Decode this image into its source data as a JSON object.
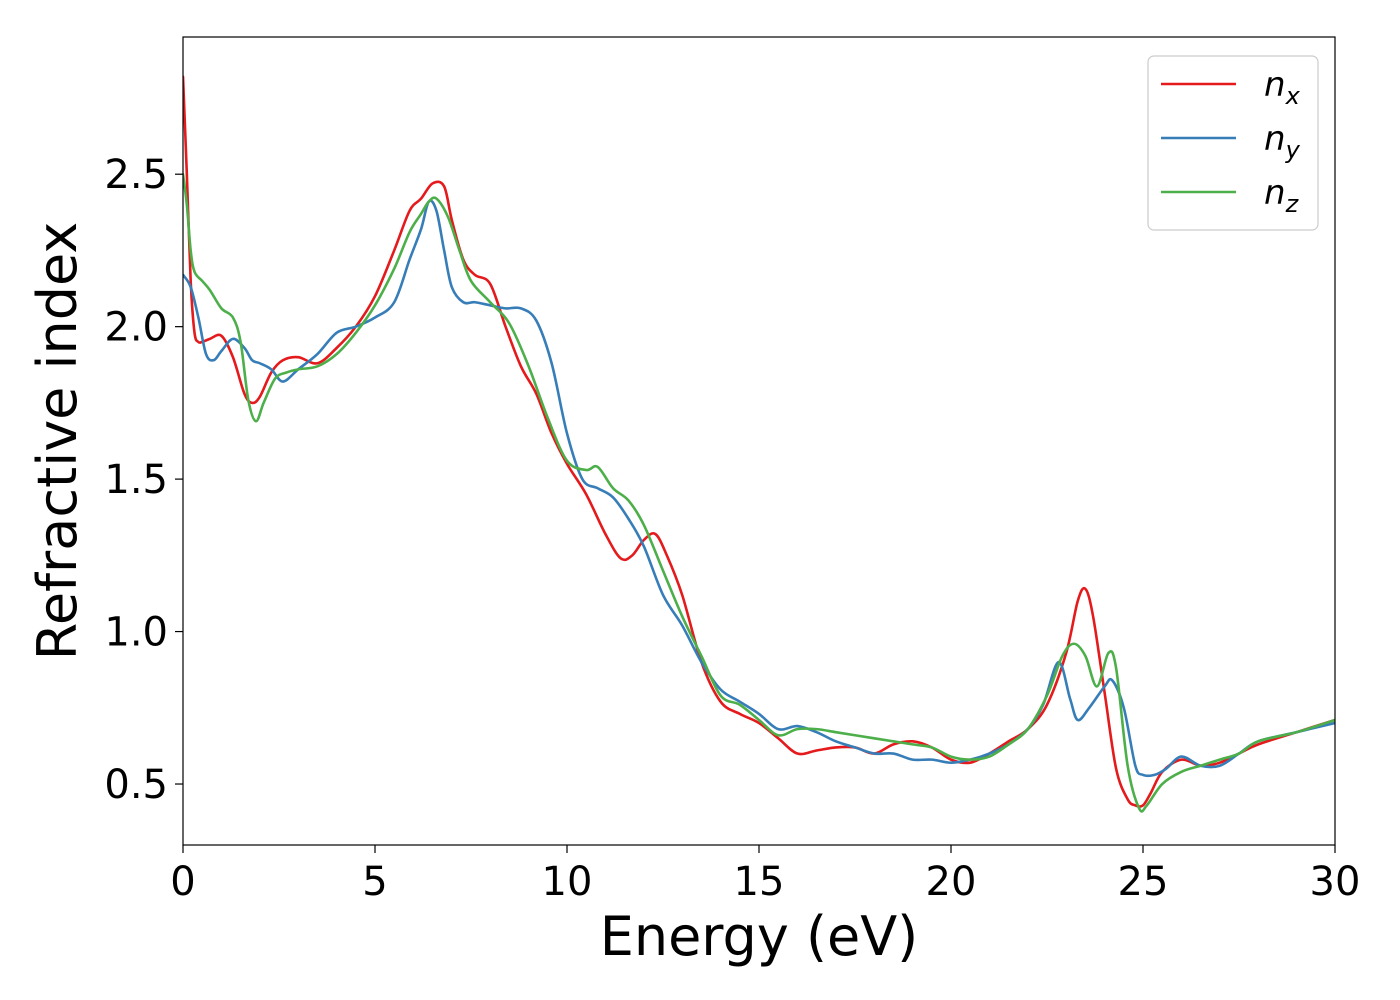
{
  "chart_data": {
    "type": "line",
    "title": "",
    "xlabel": "Energy (eV)",
    "ylabel": "Refractive index",
    "xlim": [
      0,
      30
    ],
    "ylim": [
      0.3,
      2.95
    ],
    "xticks": [
      0,
      5,
      10,
      15,
      20,
      25,
      30
    ],
    "xtick_labels": [
      "0",
      "5",
      "10",
      "15",
      "20",
      "25",
      "30"
    ],
    "yticks": [
      0.5,
      1.0,
      1.5,
      2.0,
      2.5
    ],
    "ytick_labels": [
      "0.5",
      "1.0",
      "1.5",
      "2.0",
      "2.5"
    ],
    "grid": false,
    "legend_position": "top-right",
    "series": [
      {
        "name": "n_x",
        "label_main": "n",
        "label_sub": "x",
        "color": "#e41a1c",
        "x": [
          0,
          0.1,
          0.2,
          0.3,
          0.4,
          0.5,
          0.7,
          1.0,
          1.3,
          1.6,
          1.8,
          2.0,
          2.3,
          2.6,
          3.0,
          3.5,
          4.0,
          4.5,
          5.0,
          5.5,
          5.9,
          6.2,
          6.5,
          6.8,
          7.0,
          7.3,
          7.6,
          8.0,
          8.4,
          8.8,
          9.2,
          9.6,
          10.0,
          10.5,
          11.0,
          11.4,
          11.7,
          12.0,
          12.3,
          12.6,
          13.0,
          13.5,
          14.0,
          14.5,
          15.0,
          15.5,
          16.0,
          16.5,
          17.0,
          17.5,
          18.0,
          18.5,
          19.0,
          19.5,
          20.0,
          20.5,
          21.0,
          21.5,
          22.0,
          22.5,
          23.0,
          23.3,
          23.5,
          23.7,
          24.0,
          24.3,
          24.6,
          24.8,
          25.0,
          25.2,
          25.5,
          26.0,
          26.5,
          27.0,
          27.5,
          28.0,
          29.0,
          30.0
        ],
        "y": [
          2.82,
          2.5,
          2.15,
          1.98,
          1.95,
          1.95,
          1.96,
          1.97,
          1.9,
          1.78,
          1.75,
          1.77,
          1.85,
          1.89,
          1.9,
          1.88,
          1.93,
          2.0,
          2.1,
          2.25,
          2.38,
          2.42,
          2.47,
          2.46,
          2.35,
          2.22,
          2.17,
          2.14,
          2.0,
          1.87,
          1.78,
          1.65,
          1.55,
          1.45,
          1.32,
          1.24,
          1.25,
          1.3,
          1.32,
          1.25,
          1.12,
          0.9,
          0.77,
          0.73,
          0.7,
          0.65,
          0.6,
          0.61,
          0.62,
          0.62,
          0.6,
          0.63,
          0.64,
          0.62,
          0.58,
          0.57,
          0.6,
          0.64,
          0.68,
          0.76,
          0.93,
          1.1,
          1.14,
          1.05,
          0.8,
          0.55,
          0.45,
          0.43,
          0.43,
          0.47,
          0.54,
          0.58,
          0.56,
          0.57,
          0.6,
          0.63,
          0.67,
          0.71
        ]
      },
      {
        "name": "n_y",
        "label_main": "n",
        "label_sub": "y",
        "color": "#377eb8",
        "x": [
          0,
          0.2,
          0.4,
          0.6,
          0.8,
          1.0,
          1.3,
          1.6,
          1.8,
          2.0,
          2.3,
          2.6,
          3.0,
          3.5,
          4.0,
          4.5,
          5.0,
          5.5,
          5.9,
          6.2,
          6.4,
          6.6,
          6.8,
          7.0,
          7.3,
          7.6,
          8.0,
          8.4,
          8.8,
          9.2,
          9.6,
          10.0,
          10.4,
          10.8,
          11.2,
          11.6,
          12.0,
          12.5,
          13.0,
          13.5,
          14.0,
          14.5,
          15.0,
          15.5,
          16.0,
          16.5,
          17.0,
          17.5,
          18.0,
          18.5,
          19.0,
          19.5,
          20.0,
          20.5,
          21.0,
          21.5,
          22.0,
          22.4,
          22.8,
          23.1,
          23.3,
          23.6,
          24.0,
          24.2,
          24.5,
          24.8,
          25.0,
          25.3,
          25.6,
          26.0,
          26.5,
          27.0,
          27.5,
          28.0,
          29.0,
          30.0
        ],
        "y": [
          2.17,
          2.13,
          2.03,
          1.91,
          1.89,
          1.92,
          1.96,
          1.93,
          1.89,
          1.88,
          1.86,
          1.82,
          1.86,
          1.91,
          1.98,
          2.0,
          2.03,
          2.08,
          2.22,
          2.32,
          2.41,
          2.38,
          2.25,
          2.13,
          2.08,
          2.08,
          2.07,
          2.06,
          2.06,
          2.02,
          1.88,
          1.65,
          1.5,
          1.47,
          1.44,
          1.37,
          1.28,
          1.12,
          1.02,
          0.9,
          0.81,
          0.77,
          0.73,
          0.68,
          0.69,
          0.67,
          0.64,
          0.62,
          0.6,
          0.6,
          0.58,
          0.58,
          0.57,
          0.58,
          0.6,
          0.63,
          0.68,
          0.76,
          0.9,
          0.78,
          0.71,
          0.75,
          0.82,
          0.84,
          0.75,
          0.56,
          0.53,
          0.53,
          0.55,
          0.59,
          0.56,
          0.56,
          0.6,
          0.64,
          0.67,
          0.7
        ]
      },
      {
        "name": "n_z",
        "label_main": "n",
        "label_sub": "z",
        "color": "#4daf4a",
        "x": [
          0,
          0.1,
          0.2,
          0.3,
          0.5,
          0.7,
          1.0,
          1.3,
          1.5,
          1.7,
          1.9,
          2.1,
          2.4,
          2.7,
          3.0,
          3.5,
          4.0,
          4.5,
          5.0,
          5.5,
          5.9,
          6.2,
          6.4,
          6.6,
          6.9,
          7.2,
          7.5,
          8.0,
          8.5,
          9.0,
          9.5,
          10.0,
          10.5,
          10.8,
          11.2,
          11.6,
          12.0,
          12.5,
          13.0,
          13.5,
          14.0,
          14.5,
          15.0,
          15.5,
          16.0,
          16.5,
          17.0,
          17.5,
          18.0,
          18.5,
          19.0,
          19.5,
          20.0,
          20.5,
          21.0,
          21.5,
          22.0,
          22.5,
          22.9,
          23.2,
          23.5,
          23.8,
          24.1,
          24.3,
          24.6,
          24.9,
          25.1,
          25.5,
          26.0,
          26.5,
          27.0,
          27.5,
          28.0,
          29.0,
          30.0
        ],
        "y": [
          2.5,
          2.4,
          2.25,
          2.18,
          2.15,
          2.12,
          2.06,
          2.03,
          1.95,
          1.76,
          1.69,
          1.75,
          1.83,
          1.85,
          1.86,
          1.87,
          1.91,
          1.98,
          2.07,
          2.19,
          2.31,
          2.37,
          2.41,
          2.42,
          2.36,
          2.25,
          2.15,
          2.08,
          2.01,
          1.87,
          1.7,
          1.56,
          1.53,
          1.54,
          1.47,
          1.43,
          1.35,
          1.2,
          1.05,
          0.92,
          0.79,
          0.76,
          0.71,
          0.66,
          0.68,
          0.68,
          0.67,
          0.66,
          0.65,
          0.64,
          0.63,
          0.62,
          0.59,
          0.58,
          0.59,
          0.63,
          0.68,
          0.79,
          0.92,
          0.96,
          0.92,
          0.82,
          0.93,
          0.88,
          0.56,
          0.42,
          0.43,
          0.5,
          0.54,
          0.56,
          0.58,
          0.6,
          0.64,
          0.67,
          0.71
        ]
      }
    ]
  }
}
